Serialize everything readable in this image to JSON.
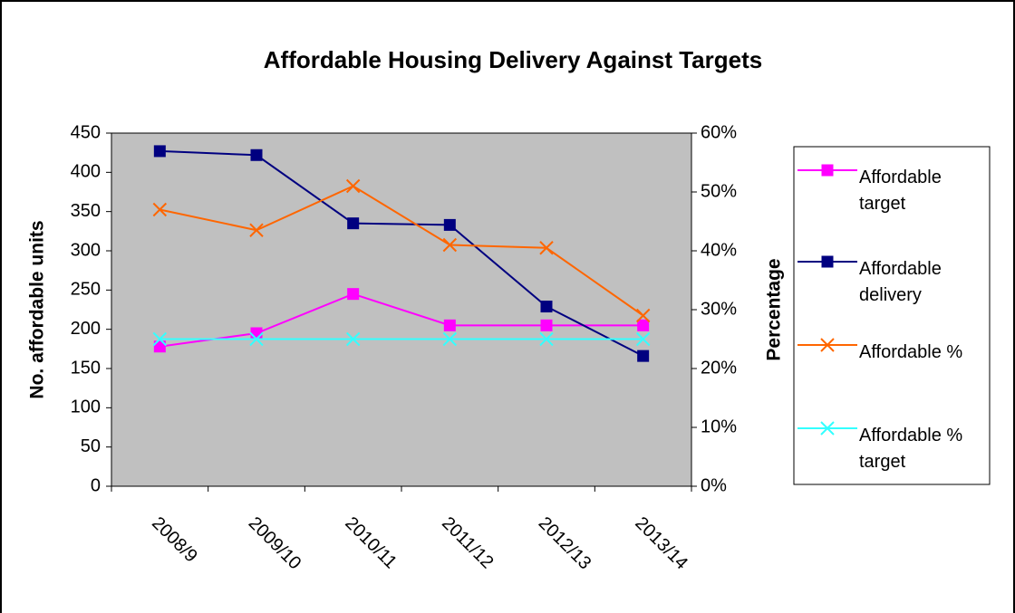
{
  "chart_data": {
    "type": "line",
    "title": "Affordable Housing Delivery Against Targets",
    "y_label": "No. affordable units",
    "y2_label": "Percentage",
    "categories": [
      "2008/9",
      "2009/10",
      "2010/11",
      "2011/12",
      "2012/13",
      "2013/14"
    ],
    "ylim": [
      0,
      450
    ],
    "yticks": [
      0,
      50,
      100,
      150,
      200,
      250,
      300,
      350,
      400,
      450
    ],
    "y2lim": [
      0,
      60
    ],
    "y2ticks": [
      {
        "value": 0,
        "label": "0%"
      },
      {
        "value": 10,
        "label": "10%"
      },
      {
        "value": 20,
        "label": "20%"
      },
      {
        "value": 30,
        "label": "30%"
      },
      {
        "value": 40,
        "label": "40%"
      },
      {
        "value": 50,
        "label": "50%"
      },
      {
        "value": 60,
        "label": "60%"
      }
    ],
    "legend": "right",
    "series": [
      {
        "name": "Affordable target",
        "color": "#ff00ff",
        "marker": "square",
        "values": [
          178,
          195,
          245,
          205,
          205,
          205
        ]
      },
      {
        "name": "Affordable delivery",
        "color": "#000080",
        "marker": "square",
        "values": [
          427,
          422,
          335,
          333,
          229,
          166
        ]
      },
      {
        "name": "Affordable %",
        "color": "#ff6600",
        "marker": "x",
        "axis": "y2",
        "values": [
          47,
          43.5,
          51,
          41,
          40.5,
          29
        ]
      },
      {
        "name": "Affordable % target",
        "color": "#33ffff",
        "marker": "x",
        "axis": "y2",
        "values": [
          25,
          25,
          25,
          25,
          25,
          25
        ]
      }
    ]
  }
}
